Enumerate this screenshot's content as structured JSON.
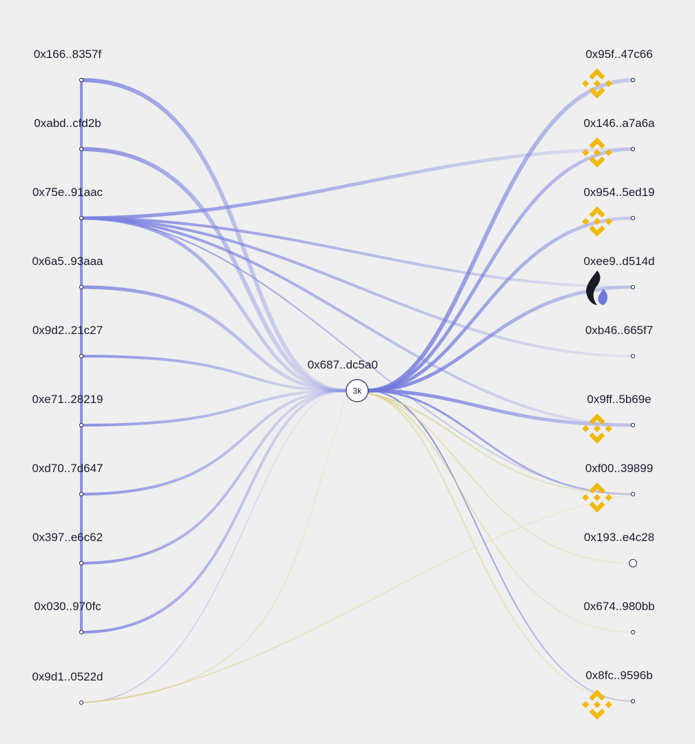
{
  "hub": {
    "label": "0x687..dc5a0",
    "count": "3k"
  },
  "sources": [
    {
      "label": "0x166..8357f"
    },
    {
      "label": "0xabd..cfd2b"
    },
    {
      "label": "0x75e..91aac"
    },
    {
      "label": "0x6a5..93aaa"
    },
    {
      "label": "0x9d2..21c27"
    },
    {
      "label": "0xe71..28219"
    },
    {
      "label": "0xd70..7d647"
    },
    {
      "label": "0x397..e6c62"
    },
    {
      "label": "0x030..970fc"
    },
    {
      "label": "0x9d1..0522d"
    }
  ],
  "targets": [
    {
      "label": "0x95f..47c66",
      "icon": "binance-icon"
    },
    {
      "label": "0x146..a7a6a",
      "icon": "binance-icon"
    },
    {
      "label": "0x954..5ed19",
      "icon": "binance-icon"
    },
    {
      "label": "0xee9..d514d",
      "icon": "flame-icon"
    },
    {
      "label": "0xb46..665f7",
      "icon": ""
    },
    {
      "label": "0x9ff..5b69e",
      "icon": "binance-icon"
    },
    {
      "label": "0xf00..39899",
      "icon": "binance-icon"
    },
    {
      "label": "0x193..e4c28",
      "icon": ""
    },
    {
      "label": "0x674..980bb",
      "icon": ""
    },
    {
      "label": "0x8fc..9596b",
      "icon": "binance-icon"
    }
  ],
  "colors": {
    "background": "#efefef",
    "flow_blue": "#7b82e0",
    "flow_yellow": "#d8cf82",
    "binance_gold": "#f0b90b",
    "node_stroke": "#1e2a4a"
  }
}
